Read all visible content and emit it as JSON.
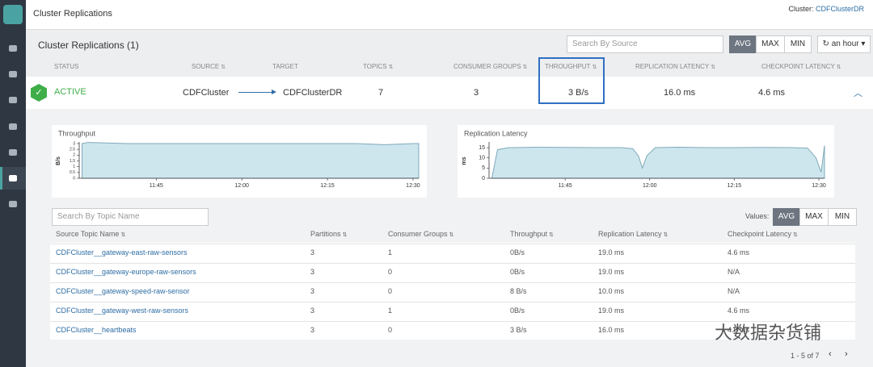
{
  "header": {
    "title": "Cluster Replications",
    "cluster_label": "Cluster:",
    "cluster_name": "CDFClusterDR"
  },
  "panel": {
    "title": "Cluster Replications (1)",
    "search_placeholder": "Search By Source",
    "toggle": [
      "AVG",
      "MAX",
      "MIN"
    ],
    "time_range": "an hour"
  },
  "columns": [
    "STATUS",
    "SOURCE",
    "TARGET",
    "TOPICS",
    "CONSUMER GROUPS",
    "THROUGHPUT",
    "REPLICATION LATENCY",
    "CHECKPOINT LATENCY"
  ],
  "replication": {
    "status": "ACTIVE",
    "source": "CDFCluster",
    "target": "CDFClusterDR",
    "topics": 7,
    "consumer_groups": 3,
    "throughput": "3 B/s",
    "replication_latency": "16.0 ms",
    "checkpoint_latency": "4.6 ms"
  },
  "charts": [
    {
      "type": "area",
      "title": "Throughput",
      "y_label": "B/s",
      "x": [
        692,
        693,
        700,
        710,
        720,
        730,
        740,
        745,
        750,
        751
      ],
      "values": [
        3,
        3.1,
        3,
        3,
        3,
        3,
        3,
        2.9,
        3,
        3
      ],
      "xlim": [
        691.5,
        751
      ],
      "ylim": [
        0,
        3
      ],
      "yticks": [
        0,
        0.5,
        1,
        1.5,
        2,
        2.5,
        3
      ],
      "xticks": [
        {
          "value": 705,
          "label": "11:45"
        },
        {
          "value": 720,
          "label": "12:00"
        },
        {
          "value": 735,
          "label": "12:15"
        },
        {
          "value": 750,
          "label": "12:30"
        }
      ]
    },
    {
      "type": "area",
      "title": "Replication Latency",
      "y_label": "ms",
      "x": [
        692,
        693,
        695,
        700,
        705,
        710,
        715,
        717,
        718,
        718.7,
        719.5,
        721,
        725,
        730,
        735,
        740,
        745,
        748,
        749.5,
        750.4,
        751
      ],
      "values": [
        0,
        14,
        15,
        15.2,
        15.1,
        15,
        15,
        14.5,
        11,
        5,
        11,
        15,
        15.2,
        15,
        15,
        15.1,
        15,
        14.8,
        10,
        3,
        16
      ],
      "xlim": [
        691.5,
        751
      ],
      "ylim": [
        0,
        17
      ],
      "yticks": [
        0,
        5,
        10,
        15
      ],
      "xticks": [
        {
          "value": 705,
          "label": "11:45"
        },
        {
          "value": 720,
          "label": "12:00"
        },
        {
          "value": 735,
          "label": "12:15"
        },
        {
          "value": 750,
          "label": "12:30"
        }
      ]
    }
  ],
  "topics": {
    "search_placeholder": "Search By Topic Name",
    "values_label": "Values:",
    "toggle": [
      "AVG",
      "MAX",
      "MIN"
    ],
    "columns": [
      "Source Topic Name",
      "Partitions",
      "Consumer Groups",
      "Throughput",
      "Replication Latency",
      "Checkpoint Latency"
    ],
    "rows": [
      [
        "CDFCluster__gateway-east-raw-sensors",
        3,
        1,
        "0B/s",
        "19.0 ms",
        "4.6 ms"
      ],
      [
        "CDFCluster__gateway-europe-raw-sensors",
        3,
        0,
        "0B/s",
        "19.0 ms",
        "N/A"
      ],
      [
        "CDFCluster__gateway-speed-raw-sensor",
        3,
        0,
        "8 B/s",
        "10.0 ms",
        "N/A"
      ],
      [
        "CDFCluster__gateway-west-raw-sensors",
        3,
        1,
        "0B/s",
        "19.0 ms",
        "4.6 ms"
      ],
      [
        "CDFCluster__heartbeats",
        3,
        0,
        "3 B/s",
        "16.0 ms",
        "4.6 ms"
      ]
    ],
    "pagination": "1 - 5 of 7"
  },
  "watermark": "大数据杂货铺"
}
